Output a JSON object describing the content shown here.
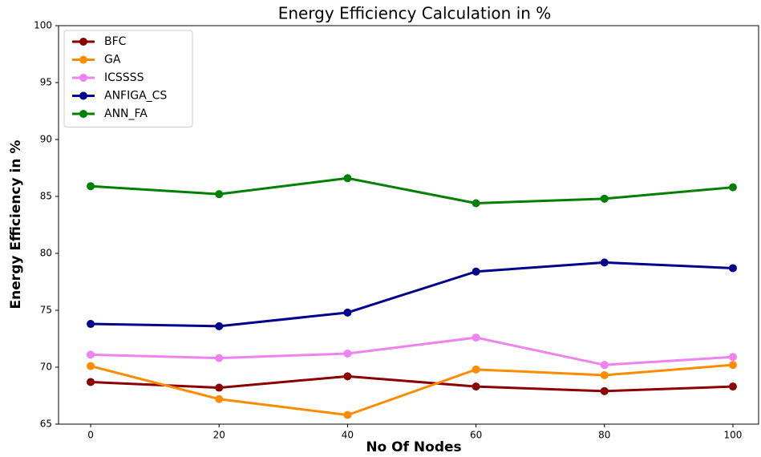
{
  "chart_data": {
    "type": "line",
    "title": "Energy Efficiency Calculation in %",
    "x_label": "No Of Nodes",
    "y_label": "Energy Efficiency in %",
    "x": [
      0,
      20,
      40,
      60,
      80,
      100
    ],
    "series": [
      {
        "name": "BFC",
        "color": "#8b0000",
        "values": [
          68.7,
          68.2,
          69.2,
          68.3,
          67.9,
          68.3
        ]
      },
      {
        "name": "GA",
        "color": "#ff8c00",
        "values": [
          70.1,
          67.2,
          65.8,
          69.8,
          69.3,
          70.2
        ]
      },
      {
        "name": "ICSSSS",
        "color": "#ee82ee",
        "values": [
          71.1,
          70.8,
          71.2,
          72.6,
          70.2,
          70.9
        ]
      },
      {
        "name": "ANFIGA_CS",
        "color": "#00008b",
        "values": [
          73.8,
          73.6,
          74.8,
          78.4,
          79.2,
          78.7
        ]
      },
      {
        "name": "ANN_FA",
        "color": "#008000",
        "values": [
          85.9,
          85.2,
          86.6,
          84.4,
          84.8,
          85.8
        ]
      }
    ],
    "xlim": [
      -5,
      104
    ],
    "xticks": [
      0,
      20,
      40,
      60,
      80,
      100
    ],
    "ylim": [
      65,
      100
    ],
    "yticks": [
      65,
      70,
      75,
      80,
      85,
      90,
      95,
      100
    ],
    "legend": "upper left"
  }
}
